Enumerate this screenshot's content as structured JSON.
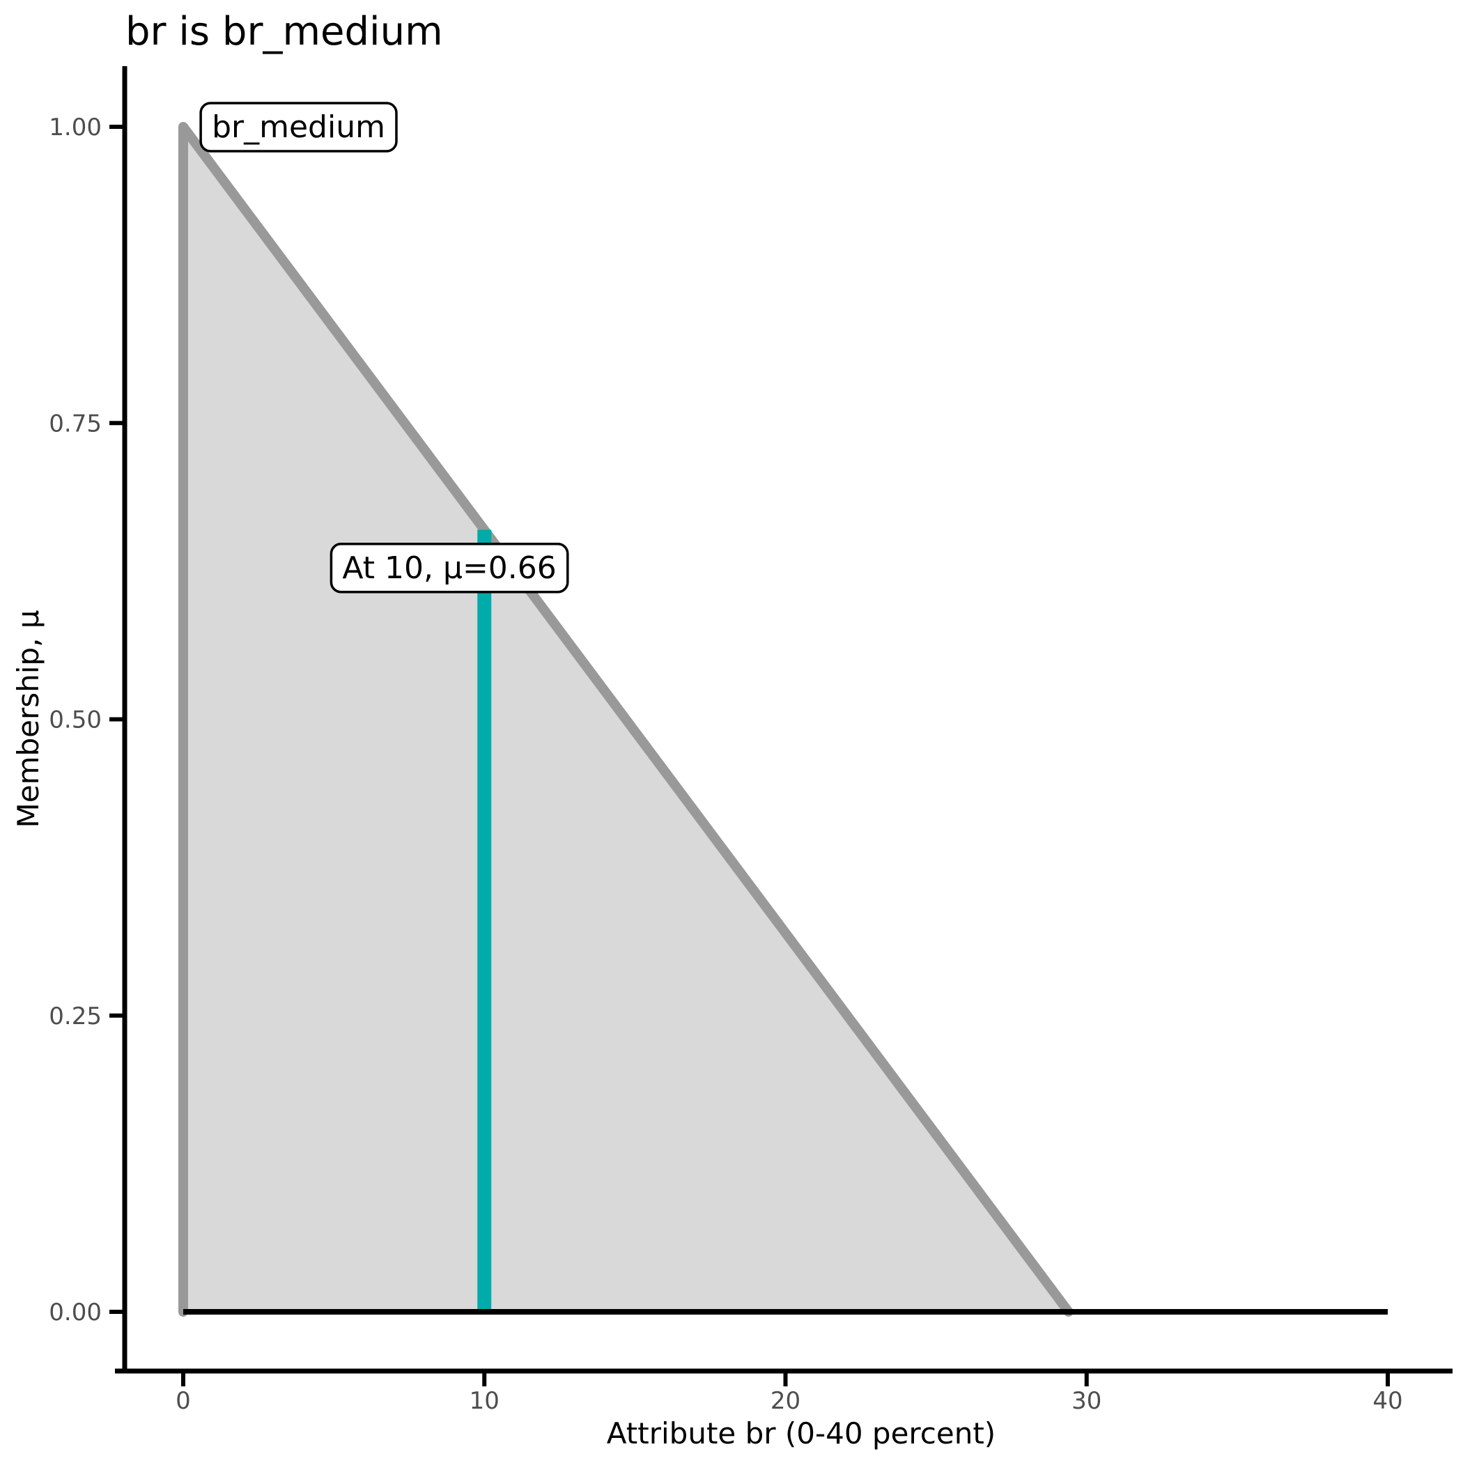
{
  "figure": {
    "background_color": "#FFFFFF",
    "axis_line_color": "#000000",
    "tick_label_color": "#4D4D4D"
  },
  "chart_data": {
    "type": "area",
    "title": "br is br_medium",
    "xlabel": "Attribute br (0-40 percent)",
    "ylabel": "Membership, μ",
    "xlim": [
      0,
      40
    ],
    "ylim": [
      0,
      1
    ],
    "grid": false,
    "legend": false,
    "x_ticks": [
      0,
      10,
      20,
      30,
      40
    ],
    "x_tick_labels": [
      "0",
      "10",
      "20",
      "30",
      "40"
    ],
    "y_ticks": [
      0,
      0.25,
      0.5,
      0.75,
      1.0
    ],
    "y_tick_labels": [
      "0.00",
      "0.25",
      "0.50",
      "0.75",
      "1.00"
    ],
    "series": [
      {
        "name": "br_medium-membership-outline",
        "type": "polyline",
        "filled": true,
        "fill_color": "#D9D9D9",
        "color": "#999999",
        "width": 14,
        "points": [
          [
            0,
            0
          ],
          [
            0,
            1
          ],
          [
            29.4,
            0
          ]
        ]
      },
      {
        "name": "crisp-input-marker",
        "type": "line",
        "filled": false,
        "color": "#00ACAA",
        "width": 20,
        "points": [
          [
            10,
            0
          ],
          [
            10,
            0.66
          ]
        ]
      },
      {
        "name": "zero-membership-baseline",
        "type": "line",
        "filled": false,
        "color": "#000000",
        "width": 8,
        "points": [
          [
            0,
            0
          ],
          [
            40,
            0
          ]
        ]
      }
    ],
    "annotations": [
      {
        "text": "br_medium",
        "x": 3.83,
        "y": 1.0
      },
      {
        "text": "At 10, μ=0.66",
        "x": 8.84,
        "y": 0.628
      }
    ],
    "marker_reading": {
      "x": 10,
      "mu": 0.66
    }
  }
}
